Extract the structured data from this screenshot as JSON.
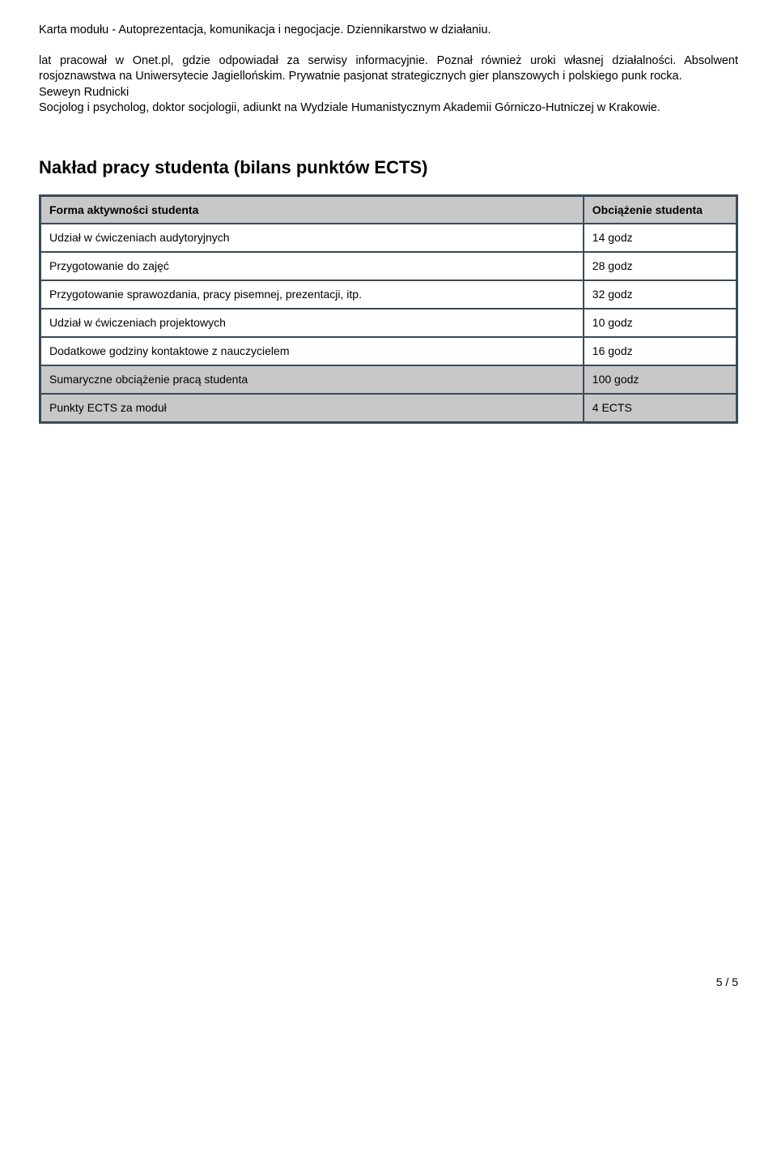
{
  "header": {
    "title": "Karta modułu - Autoprezentacja, komunikacja i negocjacje. Dziennikarstwo w działaniu."
  },
  "body": {
    "para1": "lat pracował w Onet.pl, gdzie odpowiadał za serwisy informacyjnie. Poznał również uroki własnej działalności. Absolwent rosjoznawstwa na Uniwersytecie Jagiellońskim. Prywatnie pasjonat strategicznych gier planszowych i polskiego punk rocka.",
    "para2_name": "Seweyn Rudnicki",
    "para2_rest": "Socjolog i psycholog, doktor socjologii, adiunkt na Wydziale Humanistycznym Akademii Górniczo-Hutniczej w Krakowie."
  },
  "section": {
    "title": "Nakład pracy studenta (bilans punktów ECTS)"
  },
  "table": {
    "header_label": "Forma aktywności studenta",
    "header_value": "Obciążenie studenta",
    "rows": [
      {
        "label": "Udział w ćwiczeniach audytoryjnych",
        "value": "14 godz",
        "shaded": false
      },
      {
        "label": "Przygotowanie do zajęć",
        "value": "28 godz",
        "shaded": false
      },
      {
        "label": "Przygotowanie sprawozdania, pracy pisemnej, prezentacji, itp.",
        "value": "32 godz",
        "shaded": false
      },
      {
        "label": "Udział w ćwiczeniach projektowych",
        "value": "10 godz",
        "shaded": false
      },
      {
        "label": "Dodatkowe godziny kontaktowe z nauczycielem",
        "value": "16 godz",
        "shaded": false
      },
      {
        "label": "Sumaryczne obciążenie pracą studenta",
        "value": "100 godz",
        "shaded": true
      },
      {
        "label": "Punkty ECTS za moduł",
        "value": "4 ECTS",
        "shaded": true
      }
    ]
  },
  "footer": {
    "page": "5 / 5"
  }
}
